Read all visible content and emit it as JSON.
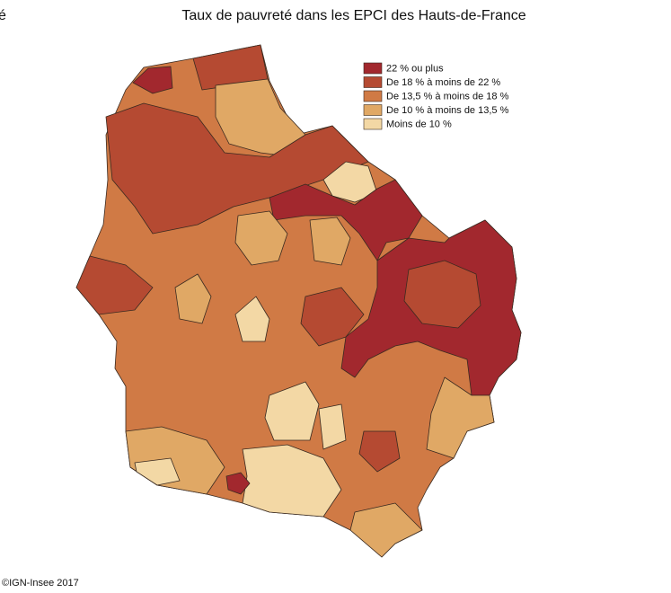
{
  "header": {
    "fragment": "é",
    "title": "Taux de pauvreté dans les EPCI des Hauts-de-France"
  },
  "legend": {
    "items": [
      {
        "label": "22 % ou plus",
        "color": "#a2282e"
      },
      {
        "label": "De 18 % à moins de 22 %",
        "color": "#b54a32"
      },
      {
        "label": "De 13,5 % à moins de 18 %",
        "color": "#d07a45"
      },
      {
        "label": "De 10 % à moins de 13,5 %",
        "color": "#e0a865"
      },
      {
        "label": "Moins de 10 %",
        "color": "#f3d8a5"
      }
    ]
  },
  "source": "©IGN-Insee 2017"
}
